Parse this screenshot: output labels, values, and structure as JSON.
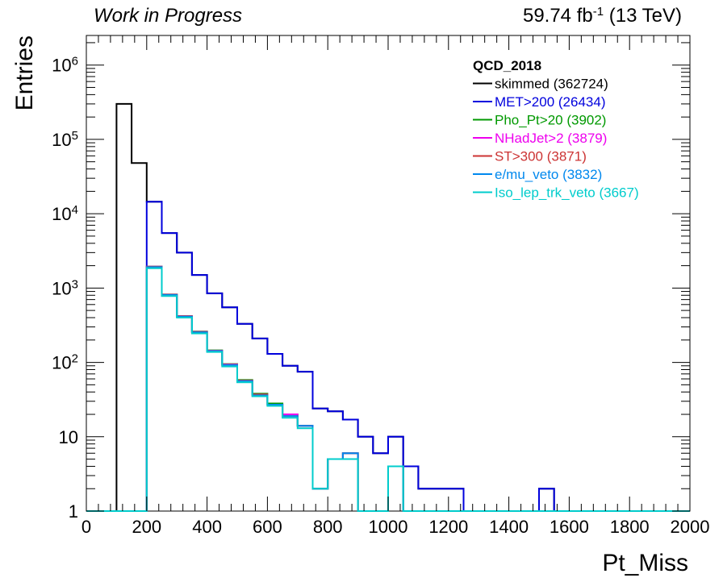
{
  "header": {
    "left": "Work in Progress",
    "right_lumi": "59.74 fb",
    "right_exp": "-1",
    "right_energy": " (13 TeV)"
  },
  "chart_data": {
    "type": "histogram",
    "title": "",
    "xlabel": "Pt_Miss",
    "ylabel": "Entries",
    "xlim": [
      0,
      2000
    ],
    "ylim": [
      1,
      2500000
    ],
    "ylog": true,
    "grid": false,
    "legend_placement": "top-right",
    "bin_width": 50,
    "x_ticks": [
      0,
      200,
      400,
      600,
      800,
      1000,
      1200,
      1400,
      1600,
      1800,
      2000
    ],
    "y_ticks": [
      {
        "value": 1,
        "base": "1",
        "exp": ""
      },
      {
        "value": 10,
        "base": "10",
        "exp": ""
      },
      {
        "value": 100,
        "base": "10",
        "exp": "2"
      },
      {
        "value": 1000,
        "base": "10",
        "exp": "3"
      },
      {
        "value": 10000,
        "base": "10",
        "exp": "4"
      },
      {
        "value": 100000,
        "base": "10",
        "exp": "5"
      },
      {
        "value": 1000000,
        "base": "10",
        "exp": "6"
      }
    ],
    "legend_title": "QCD_2018",
    "series": [
      {
        "name": "skimmed (362724)",
        "color": "#000000",
        "start": 100,
        "values": [
          300000,
          48000,
          14500,
          5500,
          3000,
          1500,
          850,
          550,
          330,
          210,
          130,
          90,
          75,
          24,
          22,
          17,
          10,
          6,
          10,
          4,
          2,
          2,
          2,
          1,
          1,
          1,
          1,
          1,
          2,
          1
        ]
      },
      {
        "name": "MET>200 (26434)",
        "color": "#0000dd",
        "start": 200,
        "values": [
          14500,
          5500,
          3000,
          1500,
          850,
          550,
          330,
          210,
          130,
          90,
          75,
          24,
          22,
          17,
          10,
          6,
          10,
          4,
          2,
          2,
          2,
          1,
          1,
          1,
          1,
          1,
          2,
          1
        ]
      },
      {
        "name": "Pho_Pt>20 (3902)",
        "color": "#009900",
        "start": 200,
        "values": [
          1950,
          820,
          420,
          260,
          145,
          95,
          58,
          38,
          28,
          20,
          14,
          2,
          5,
          6,
          1,
          1,
          4,
          1
        ]
      },
      {
        "name": "NHadJet>2 (3879)",
        "color": "#ee00ee",
        "start": 200,
        "values": [
          1940,
          815,
          418,
          258,
          144,
          94,
          57,
          37,
          27,
          20,
          14,
          2,
          5,
          6,
          1,
          1,
          4,
          1
        ]
      },
      {
        "name": "ST>300 (3871)",
        "color": "#cc3333",
        "start": 200,
        "values": [
          1930,
          812,
          416,
          257,
          143,
          93,
          57,
          37,
          27,
          19,
          14,
          2,
          5,
          6,
          1,
          1,
          4,
          1
        ]
      },
      {
        "name": "e/mu_veto (3832)",
        "color": "#0088ee",
        "start": 200,
        "values": [
          1910,
          805,
          412,
          254,
          142,
          92,
          56,
          36,
          27,
          19,
          14,
          2,
          5,
          6,
          1,
          1,
          4,
          1
        ]
      },
      {
        "name": "Iso_lep_trk_veto (3667)",
        "color": "#00cccc",
        "start": 200,
        "values": [
          1850,
          780,
          400,
          245,
          138,
          88,
          54,
          35,
          26,
          18,
          13,
          2,
          5,
          5,
          1,
          1,
          4,
          1
        ]
      }
    ]
  }
}
